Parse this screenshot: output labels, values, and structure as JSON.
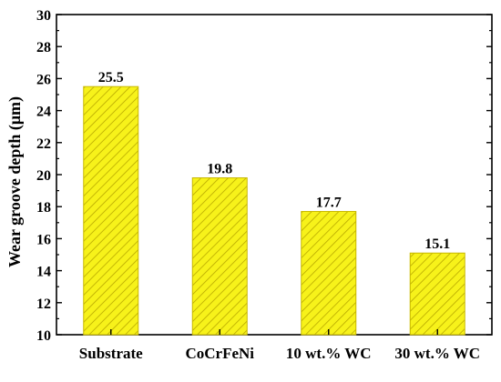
{
  "chart_data": {
    "type": "bar",
    "categories": [
      "Substrate",
      "CoCrFeNi",
      "10 wt.% WC",
      "30 wt.% WC"
    ],
    "values": [
      25.5,
      19.8,
      17.7,
      15.1
    ],
    "value_labels": [
      "25.5",
      "19.8",
      "17.7",
      "15.1"
    ],
    "title": "",
    "xlabel": "",
    "ylabel": "Wear groove depth (μm)",
    "ylim": [
      10,
      30
    ],
    "yticks": [
      10,
      12,
      14,
      16,
      18,
      20,
      22,
      24,
      26,
      28,
      30
    ],
    "grid": false,
    "legend": "none",
    "colors": {
      "bar_fill": "#f7f21a",
      "bar_hatch": "#b8a800",
      "bar_edge": "#c8b800",
      "axis": "#000000"
    }
  }
}
